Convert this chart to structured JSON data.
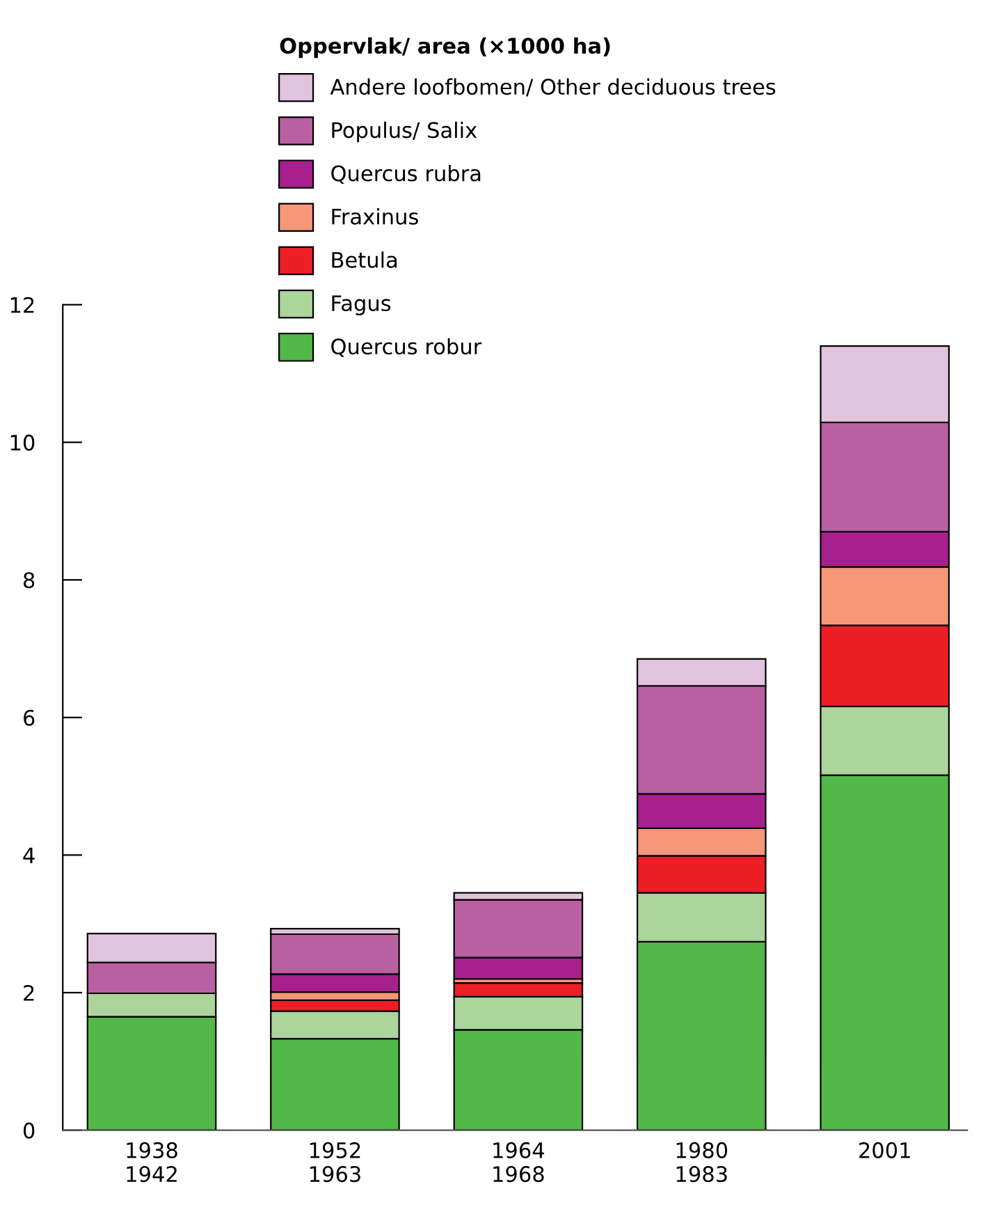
{
  "chart_data": {
    "type": "bar",
    "stacked": true,
    "legend_title": "Oppervlak/ area (×1000 ha)",
    "categories": [
      "1938\n1942",
      "1952\n1963",
      "1964\n1968",
      "1980\n1983",
      "2001"
    ],
    "series": [
      {
        "name": "Quercus robur",
        "color": "#52b848",
        "values": [
          1.65,
          1.33,
          1.46,
          2.74,
          5.16
        ]
      },
      {
        "name": "Fagus",
        "color": "#abd59b",
        "values": [
          0.34,
          0.4,
          0.48,
          0.71,
          1.0
        ]
      },
      {
        "name": "Betula",
        "color": "#ec1e26",
        "values": [
          0,
          0.16,
          0.2,
          0.54,
          1.18
        ]
      },
      {
        "name": "Fraxinus",
        "color": "#f6977a",
        "values": [
          0,
          0.12,
          0.06,
          0.4,
          0.85
        ]
      },
      {
        "name": "Quercus rubra",
        "color": "#a8208d",
        "values": [
          0,
          0.26,
          0.31,
          0.5,
          0.51
        ]
      },
      {
        "name": "Populus/ Salix",
        "color": "#b960a3",
        "values": [
          0.45,
          0.58,
          0.84,
          1.57,
          1.59
        ]
      },
      {
        "name": "Andere loofbomen/ Other deciduous trees",
        "color": "#e2c3de",
        "values": [
          0.42,
          0.08,
          0.1,
          0.39,
          1.11
        ]
      }
    ],
    "ylim": [
      0,
      12
    ],
    "yticks": [
      0,
      2,
      4,
      6,
      8,
      10,
      12
    ],
    "legend": "top",
    "grid": false
  }
}
